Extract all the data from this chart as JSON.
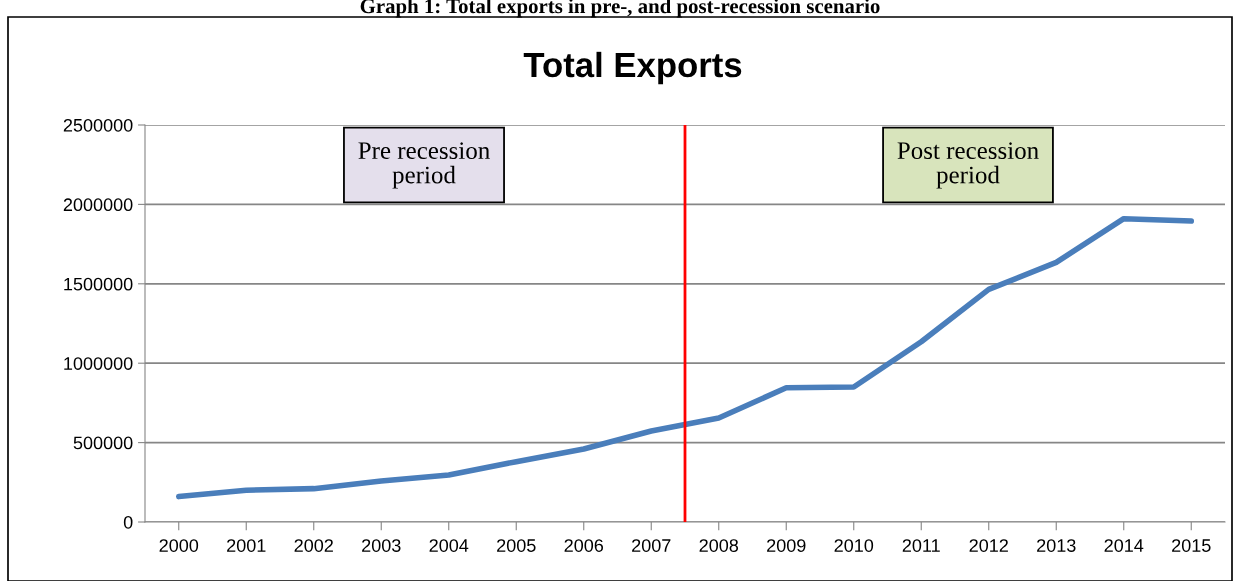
{
  "chart_data": {
    "type": "line",
    "title": "Total Exports",
    "x": [
      2000,
      2001,
      2002,
      2003,
      2004,
      2005,
      2006,
      2007,
      2008,
      2009,
      2010,
      2011,
      2012,
      2013,
      2014,
      2015
    ],
    "series": [
      {
        "color": "#4a7ebb",
        "values": [
          160000,
          200000,
          210000,
          258000,
          296000,
          380000,
          460000,
          573000,
          655000,
          845000,
          850000,
          1135000,
          1465000,
          1635000,
          1910000,
          1895000
        ]
      }
    ],
    "xlim": [
      1999.5,
      2015.5
    ],
    "xticks": [
      2000,
      2001,
      2002,
      2003,
      2004,
      2005,
      2006,
      2007,
      2008,
      2009,
      2010,
      2011,
      2012,
      2013,
      2014,
      2015
    ],
    "ylim": [
      0,
      2500000
    ],
    "yticks": [
      0,
      500000,
      1000000,
      1500000,
      2000000,
      2500000
    ],
    "grid": "y",
    "legend": false,
    "marker": "none",
    "line_style": "solid",
    "ref_lines": [
      {
        "axis": "x",
        "value": 2007.5,
        "color": "#ff0000",
        "line_style": "solid"
      }
    ],
    "annotations": [
      "Graph 1: Total exports in pre-, and post-recession scenario",
      "Pre recession\nperiod",
      "Post recession\nperiod"
    ]
  }
}
